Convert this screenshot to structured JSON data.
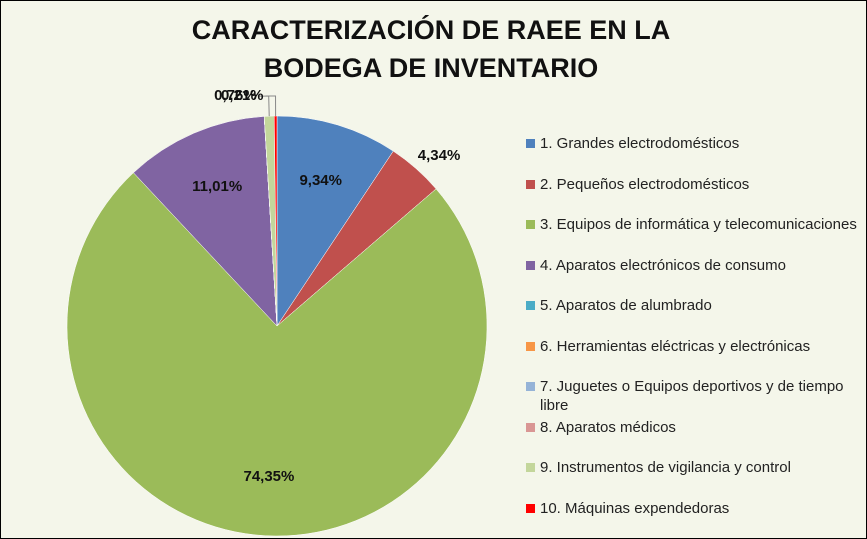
{
  "chart_data": {
    "type": "pie",
    "title": "CARACTERIZACIÓN DE RAEE EN LA BODEGA DE INVENTARIO",
    "categories": [
      "1.  Grandes electrodomésticos",
      "2.  Pequeños electrodomésticos",
      "3.  Equipos de informática y telecomunicaciones",
      "4.  Aparatos electrónicos de consumo",
      "5.  Aparatos de alumbrado",
      "6.  Herramientas eléctricas y electrónicas",
      "7.  Juguetes o Equipos deportivos y de tiempo libre",
      "8.  Aparatos médicos",
      "9.  Instrumentos de vigilancia y control",
      "10.  Máquinas expendedoras"
    ],
    "values": [
      9.34,
      4.34,
      74.35,
      11.01,
      0,
      0,
      0,
      0,
      0.76,
      0.21
    ],
    "value_labels": [
      "9,34%",
      "4,34%",
      "74,35%",
      "11,01%",
      null,
      null,
      null,
      null,
      "0,76%",
      "0,21%"
    ],
    "colors": [
      "#4f81bd",
      "#c0504d",
      "#9bbb59",
      "#8064a2",
      "#4bacc6",
      "#f79646",
      "#95b3d7",
      "#d99694",
      "#c3d69b",
      "#ff0000"
    ],
    "legend": "right"
  }
}
